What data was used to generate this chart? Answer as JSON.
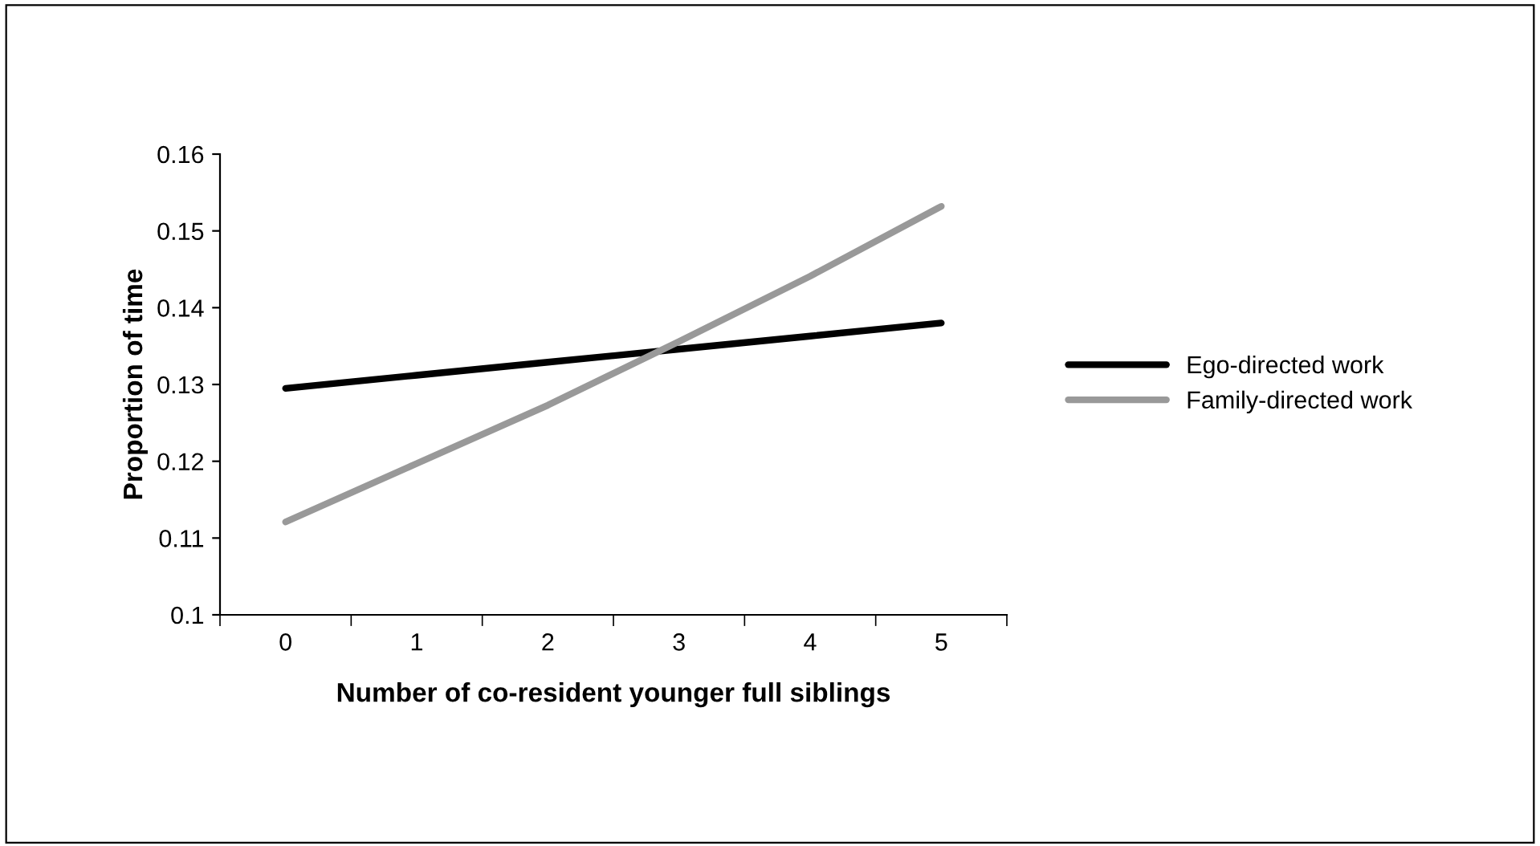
{
  "chart_data": {
    "type": "line",
    "xlabel": "Number of co-resident younger full siblings",
    "ylabel": "Proportion of time",
    "categories": [
      "0",
      "1",
      "2",
      "3",
      "4",
      "5"
    ],
    "series": [
      {
        "name": "Ego-directed work",
        "color": "#000000",
        "values": [
          0.1295,
          0.1312,
          0.1329,
          0.1346,
          0.1363,
          0.138
        ]
      },
      {
        "name": "Family-directed work",
        "color": "#999999",
        "values": [
          0.1121,
          0.1197,
          0.1273,
          0.1356,
          0.1441,
          0.1532
        ]
      }
    ],
    "ylim": [
      0.1,
      0.16
    ],
    "yticks": [
      {
        "value": 0.1,
        "label": "0.1"
      },
      0.11,
      0.12,
      0.13,
      0.14,
      0.15,
      0.16
    ],
    "grid": false,
    "legend": "right",
    "marker": "none",
    "line_style": "solid"
  }
}
